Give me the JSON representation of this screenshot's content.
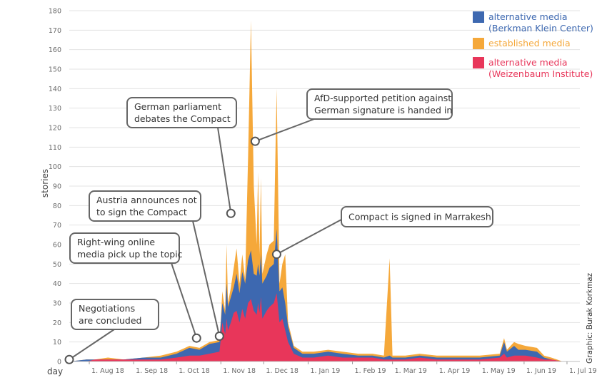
{
  "chart_data": {
    "type": "area",
    "xlabel": "day",
    "ylabel": "stories",
    "ylim": [
      0,
      180
    ],
    "yticks": [
      0,
      10,
      20,
      30,
      40,
      50,
      60,
      70,
      80,
      90,
      100,
      110,
      120,
      130,
      140,
      150,
      160,
      170,
      180
    ],
    "xlim": [
      "2018-07-18",
      "2019-07-10"
    ],
    "xticks": [
      {
        "date": "2018-08-01",
        "label": "1. Aug 18"
      },
      {
        "date": "2018-09-01",
        "label": "1. Sep 18"
      },
      {
        "date": "2018-10-01",
        "label": "1. Oct 18"
      },
      {
        "date": "2018-11-01",
        "label": "1. Nov 18"
      },
      {
        "date": "2018-12-01",
        "label": "1. Dec 18"
      },
      {
        "date": "2019-01-01",
        "label": "1. Jan 19"
      },
      {
        "date": "2019-02-01",
        "label": "1. Feb 19"
      },
      {
        "date": "2019-03-01",
        "label": "1. Mar 19"
      },
      {
        "date": "2019-04-01",
        "label": "1. Apr 19"
      },
      {
        "date": "2019-05-01",
        "label": "1. May 19"
      },
      {
        "date": "2019-06-01",
        "label": "1. Jun 19"
      },
      {
        "date": "2019-07-01",
        "label": "1. Jul 19"
      }
    ],
    "stacking": "overlapping areas (established media behind, Berkman Klein alternative media middle, Weizenbaum alternative media front)",
    "series": [
      {
        "name": "established media",
        "color": "#f5a83a",
        "points": [
          [
            "2018-07-18",
            0
          ],
          [
            "2018-07-30",
            1
          ],
          [
            "2018-08-05",
            1
          ],
          [
            "2018-08-14",
            2
          ],
          [
            "2018-08-25",
            1
          ],
          [
            "2018-09-08",
            2
          ],
          [
            "2018-09-20",
            3
          ],
          [
            "2018-10-01",
            5
          ],
          [
            "2018-10-10",
            8
          ],
          [
            "2018-10-17",
            7
          ],
          [
            "2018-10-24",
            10
          ],
          [
            "2018-10-31",
            11
          ],
          [
            "2018-11-01",
            22
          ],
          [
            "2018-11-02",
            36
          ],
          [
            "2018-11-04",
            26
          ],
          [
            "2018-11-05",
            60
          ],
          [
            "2018-11-06",
            30
          ],
          [
            "2018-11-08",
            38
          ],
          [
            "2018-11-10",
            48
          ],
          [
            "2018-11-12",
            58
          ],
          [
            "2018-11-14",
            40
          ],
          [
            "2018-11-16",
            55
          ],
          [
            "2018-11-18",
            42
          ],
          [
            "2018-11-20",
            105
          ],
          [
            "2018-11-22",
            175
          ],
          [
            "2018-11-24",
            90
          ],
          [
            "2018-11-26",
            60
          ],
          [
            "2018-11-27",
            97
          ],
          [
            "2018-11-28",
            55
          ],
          [
            "2018-11-29",
            94
          ],
          [
            "2018-11-30",
            45
          ],
          [
            "2018-12-03",
            55
          ],
          [
            "2018-12-05",
            60
          ],
          [
            "2018-12-08",
            62
          ],
          [
            "2018-12-10",
            140
          ],
          [
            "2018-12-12",
            40
          ],
          [
            "2018-12-14",
            50
          ],
          [
            "2018-12-16",
            55
          ],
          [
            "2018-12-18",
            20
          ],
          [
            "2018-12-22",
            8
          ],
          [
            "2018-12-28",
            5
          ],
          [
            "2019-01-05",
            5
          ],
          [
            "2019-01-15",
            6
          ],
          [
            "2019-01-25",
            5
          ],
          [
            "2019-02-05",
            4
          ],
          [
            "2019-02-15",
            4
          ],
          [
            "2019-02-23",
            3
          ],
          [
            "2019-02-27",
            53
          ],
          [
            "2019-03-01",
            3
          ],
          [
            "2019-03-10",
            3
          ],
          [
            "2019-03-20",
            4
          ],
          [
            "2019-04-01",
            3
          ],
          [
            "2019-04-15",
            3
          ],
          [
            "2019-05-01",
            3
          ],
          [
            "2019-05-15",
            4
          ],
          [
            "2019-05-18",
            12
          ],
          [
            "2019-05-20",
            6
          ],
          [
            "2019-05-25",
            10
          ],
          [
            "2019-05-28",
            9
          ],
          [
            "2019-06-02",
            8
          ],
          [
            "2019-06-10",
            7
          ],
          [
            "2019-06-15",
            3
          ],
          [
            "2019-06-20",
            2
          ],
          [
            "2019-06-28",
            0
          ],
          [
            "2019-07-01",
            0
          ]
        ]
      },
      {
        "name": "alternative media (Berkman Klein Center)",
        "color": "#3d68b0",
        "points": [
          [
            "2018-07-18",
            0
          ],
          [
            "2018-07-30",
            1
          ],
          [
            "2018-08-05",
            1
          ],
          [
            "2018-08-14",
            1
          ],
          [
            "2018-08-25",
            1
          ],
          [
            "2018-09-08",
            2
          ],
          [
            "2018-09-20",
            2
          ],
          [
            "2018-10-01",
            4
          ],
          [
            "2018-10-10",
            7
          ],
          [
            "2018-10-17",
            6
          ],
          [
            "2018-10-24",
            9
          ],
          [
            "2018-10-31",
            10
          ],
          [
            "2018-11-01",
            20
          ],
          [
            "2018-11-02",
            30
          ],
          [
            "2018-11-04",
            24
          ],
          [
            "2018-11-05",
            40
          ],
          [
            "2018-11-06",
            28
          ],
          [
            "2018-11-08",
            33
          ],
          [
            "2018-11-10",
            38
          ],
          [
            "2018-11-12",
            45
          ],
          [
            "2018-11-14",
            35
          ],
          [
            "2018-11-16",
            46
          ],
          [
            "2018-11-18",
            40
          ],
          [
            "2018-11-20",
            52
          ],
          [
            "2018-11-22",
            57
          ],
          [
            "2018-11-24",
            45
          ],
          [
            "2018-11-26",
            44
          ],
          [
            "2018-11-27",
            50
          ],
          [
            "2018-11-28",
            44
          ],
          [
            "2018-11-29",
            55
          ],
          [
            "2018-11-30",
            40
          ],
          [
            "2018-12-03",
            44
          ],
          [
            "2018-12-05",
            48
          ],
          [
            "2018-12-08",
            50
          ],
          [
            "2018-12-10",
            68
          ],
          [
            "2018-12-12",
            36
          ],
          [
            "2018-12-14",
            38
          ],
          [
            "2018-12-16",
            30
          ],
          [
            "2018-12-18",
            18
          ],
          [
            "2018-12-22",
            7
          ],
          [
            "2018-12-28",
            4
          ],
          [
            "2019-01-05",
            4
          ],
          [
            "2019-01-15",
            5
          ],
          [
            "2019-01-25",
            4
          ],
          [
            "2019-02-05",
            3
          ],
          [
            "2019-02-15",
            3
          ],
          [
            "2019-02-23",
            2
          ],
          [
            "2019-02-27",
            3
          ],
          [
            "2019-03-01",
            2
          ],
          [
            "2019-03-10",
            2
          ],
          [
            "2019-03-20",
            3
          ],
          [
            "2019-04-01",
            2
          ],
          [
            "2019-04-15",
            2
          ],
          [
            "2019-05-01",
            2
          ],
          [
            "2019-05-15",
            3
          ],
          [
            "2019-05-18",
            10
          ],
          [
            "2019-05-20",
            5
          ],
          [
            "2019-05-25",
            8
          ],
          [
            "2019-05-28",
            6
          ],
          [
            "2019-06-02",
            6
          ],
          [
            "2019-06-10",
            5
          ],
          [
            "2019-06-15",
            2
          ],
          [
            "2019-06-20",
            1
          ],
          [
            "2019-06-28",
            0
          ],
          [
            "2019-07-01",
            0
          ]
        ]
      },
      {
        "name": "alternative media (Weizenbaum Institute)",
        "color": "#e8365a",
        "points": [
          [
            "2018-07-18",
            0
          ],
          [
            "2018-07-30",
            0
          ],
          [
            "2018-08-05",
            1
          ],
          [
            "2018-08-14",
            1
          ],
          [
            "2018-08-25",
            1
          ],
          [
            "2018-09-08",
            1
          ],
          [
            "2018-09-20",
            1
          ],
          [
            "2018-10-01",
            2
          ],
          [
            "2018-10-10",
            3
          ],
          [
            "2018-10-17",
            3
          ],
          [
            "2018-10-24",
            4
          ],
          [
            "2018-10-31",
            5
          ],
          [
            "2018-11-01",
            12
          ],
          [
            "2018-11-02",
            20
          ],
          [
            "2018-11-04",
            14
          ],
          [
            "2018-11-05",
            22
          ],
          [
            "2018-11-06",
            16
          ],
          [
            "2018-11-08",
            20
          ],
          [
            "2018-11-10",
            25
          ],
          [
            "2018-11-12",
            26
          ],
          [
            "2018-11-14",
            20
          ],
          [
            "2018-11-16",
            27
          ],
          [
            "2018-11-18",
            22
          ],
          [
            "2018-11-20",
            30
          ],
          [
            "2018-11-22",
            32
          ],
          [
            "2018-11-24",
            26
          ],
          [
            "2018-11-26",
            24
          ],
          [
            "2018-11-27",
            30
          ],
          [
            "2018-11-28",
            25
          ],
          [
            "2018-11-29",
            33
          ],
          [
            "2018-11-30",
            22
          ],
          [
            "2018-12-03",
            26
          ],
          [
            "2018-12-05",
            28
          ],
          [
            "2018-12-08",
            30
          ],
          [
            "2018-12-10",
            35
          ],
          [
            "2018-12-12",
            20
          ],
          [
            "2018-12-14",
            22
          ],
          [
            "2018-12-16",
            16
          ],
          [
            "2018-12-18",
            10
          ],
          [
            "2018-12-22",
            4
          ],
          [
            "2018-12-28",
            2
          ],
          [
            "2019-01-05",
            2
          ],
          [
            "2019-01-15",
            3
          ],
          [
            "2019-01-25",
            2
          ],
          [
            "2019-02-05",
            2
          ],
          [
            "2019-02-15",
            2
          ],
          [
            "2019-02-23",
            1
          ],
          [
            "2019-02-27",
            1
          ],
          [
            "2019-03-01",
            1
          ],
          [
            "2019-03-10",
            1
          ],
          [
            "2019-03-20",
            2
          ],
          [
            "2019-04-01",
            1
          ],
          [
            "2019-04-15",
            1
          ],
          [
            "2019-05-01",
            1
          ],
          [
            "2019-05-15",
            2
          ],
          [
            "2019-05-18",
            4
          ],
          [
            "2019-05-20",
            2
          ],
          [
            "2019-05-25",
            3
          ],
          [
            "2019-05-28",
            3
          ],
          [
            "2019-06-02",
            3
          ],
          [
            "2019-06-10",
            2
          ],
          [
            "2019-06-15",
            1
          ],
          [
            "2019-06-20",
            1
          ],
          [
            "2019-06-28",
            0
          ],
          [
            "2019-07-01",
            0
          ]
        ]
      }
    ],
    "legend": {
      "placement": "top-right",
      "entries": [
        {
          "lines": [
            "alternative media",
            "(Berkman Klein Center)"
          ],
          "color": "#3d68b0"
        },
        {
          "lines": [
            "established media"
          ],
          "color": "#f5a83a"
        },
        {
          "lines": [
            "alternative media",
            "(Weizenbaum Institute)"
          ],
          "color": "#e8365a"
        }
      ]
    },
    "annotations": [
      {
        "lines": [
          "Negotiations",
          "are concluded"
        ],
        "date": "2018-07-18",
        "y": 1
      },
      {
        "lines": [
          "Right-wing online",
          "media pick up the topic"
        ],
        "date": "2018-10-15",
        "y": 12
      },
      {
        "lines": [
          "Austria announces not",
          "to sign the Compact"
        ],
        "date": "2018-10-31",
        "y": 13
      },
      {
        "lines": [
          "German parliament",
          "debates the Compact"
        ],
        "date": "2018-11-08",
        "y": 76
      },
      {
        "lines": [
          "AfD-supported petition against",
          "German signature is handed in"
        ],
        "date": "2018-11-25",
        "y": 113
      },
      {
        "lines": [
          "Compact is signed in Marrakesh"
        ],
        "date": "2018-12-10",
        "y": 55
      }
    ],
    "credit": "Graphic: Burak Korkmaz"
  }
}
